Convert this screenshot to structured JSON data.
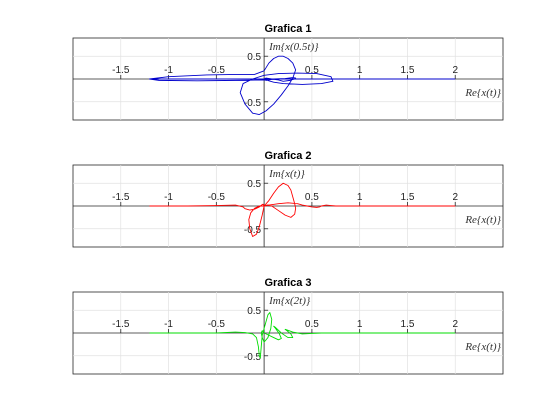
{
  "chart_data": [
    {
      "type": "line",
      "title": "Grafica 1",
      "xlabel": "Re{x(t)}",
      "ylabel": "Im{x(0.5t)}",
      "xlim": [
        -2.0,
        2.5
      ],
      "ylim": [
        -0.9,
        0.9
      ],
      "grid": true,
      "x_ticks": [
        -1.5,
        -1,
        -0.5,
        0.5,
        1,
        1.5,
        2
      ],
      "x_tick_labels": [
        "-1.5",
        "-1",
        "-0.5",
        "0.5",
        "1",
        "1.5",
        "2"
      ],
      "y_ticks": [
        0.5,
        -0.5
      ],
      "y_tick_labels": [
        "0.5",
        "-0.5"
      ],
      "series": [
        {
          "color": "#0000cc",
          "x": [
            -1.2,
            -1.0,
            -0.6,
            -0.3,
            -0.1,
            0.0,
            0.05,
            0.1,
            0.15,
            0.2,
            0.25,
            0.3,
            0.33,
            0.3,
            0.25,
            0.18,
            0.1,
            0.02,
            -0.05,
            -0.12,
            -0.2,
            -0.25,
            -0.22,
            -0.12,
            0.0,
            0.15,
            0.35,
            0.55,
            0.7,
            0.72,
            0.6,
            0.4,
            0.2,
            0.1,
            0.05,
            0.02,
            0.0,
            0.02,
            0.08,
            0.15,
            0.2,
            0.27,
            0.32,
            0.33,
            0.3,
            0.22,
            0.1,
            0.05,
            0.03,
            0.0,
            -0.3,
            -0.7,
            -1.1,
            -1.2,
            -0.9,
            -0.5,
            0.0,
            0.5,
            1.0,
            1.5,
            2.0
          ],
          "y": [
            0.0,
            0.05,
            0.09,
            0.1,
            0.1,
            0.18,
            0.35,
            0.45,
            0.5,
            0.5,
            0.45,
            0.35,
            0.2,
            0.02,
            -0.15,
            -0.35,
            -0.55,
            -0.7,
            -0.78,
            -0.75,
            -0.55,
            -0.3,
            -0.1,
            0.0,
            0.08,
            0.12,
            0.13,
            0.12,
            0.05,
            -0.05,
            -0.1,
            -0.12,
            -0.1,
            -0.07,
            -0.04,
            -0.01,
            0.0,
            0.02,
            0.0,
            -0.02,
            -0.05,
            -0.03,
            0.0,
            0.02,
            0.03,
            0.01,
            0.0,
            -0.02,
            -0.03,
            -0.02,
            -0.03,
            -0.04,
            -0.03,
            0.0,
            0.0,
            0.0,
            0.0,
            0.0,
            0.0,
            0.0,
            0.0
          ]
        }
      ]
    },
    {
      "type": "line",
      "title": "Grafica 2",
      "xlabel": "Re{x(t)}",
      "ylabel": "Im{x(t)}",
      "xlim": [
        -2.0,
        2.5
      ],
      "ylim": [
        -0.9,
        0.9
      ],
      "grid": true,
      "x_ticks": [
        -1.5,
        -1,
        -0.5,
        0.5,
        1,
        1.5,
        2
      ],
      "x_tick_labels": [
        "-1.5",
        "-1",
        "-0.5",
        "0.5",
        "1",
        "1.5",
        "2"
      ],
      "y_ticks": [
        0.5,
        -0.5
      ],
      "y_tick_labels": [
        "0.5",
        "-0.5"
      ],
      "series": [
        {
          "color": "#ff0000",
          "x": [
            -1.2,
            -0.8,
            -0.5,
            -0.3,
            -0.22,
            -0.2,
            -0.15,
            -0.1,
            -0.05,
            -0.02,
            -0.01,
            0.0,
            0.05,
            0.1,
            0.15,
            0.2,
            0.25,
            0.28,
            0.3,
            0.32,
            0.33,
            0.32,
            0.28,
            0.22,
            0.15,
            0.08,
            0.03,
            0.0,
            -0.02,
            -0.05,
            -0.08,
            -0.12,
            -0.15,
            -0.16,
            -0.14,
            -0.1,
            -0.05,
            0.0,
            0.05,
            0.15,
            0.25,
            0.35,
            0.4,
            0.45,
            0.5,
            0.55,
            0.58,
            0.6,
            0.65,
            0.7,
            0.75,
            0.8,
            0.9,
            1.1,
            1.3,
            1.5,
            1.7,
            1.9,
            2.0
          ],
          "y": [
            0.0,
            0.0,
            0.01,
            0.02,
            -0.02,
            -0.06,
            -0.09,
            -0.07,
            -0.02,
            0.03,
            0.04,
            0.0,
            0.12,
            0.28,
            0.42,
            0.5,
            0.45,
            0.35,
            0.2,
            0.05,
            -0.05,
            -0.18,
            -0.25,
            -0.2,
            -0.1,
            0.0,
            0.02,
            0.0,
            -0.2,
            -0.45,
            -0.62,
            -0.67,
            -0.5,
            -0.3,
            -0.15,
            -0.05,
            0.0,
            0.0,
            0.02,
            0.05,
            0.07,
            0.05,
            0.02,
            0.0,
            -0.02,
            -0.03,
            -0.02,
            0.0,
            0.02,
            0.01,
            0.0,
            0.0,
            0.0,
            0.0,
            0.0,
            0.0,
            0.0,
            0.0,
            0.0
          ]
        }
      ]
    },
    {
      "type": "line",
      "title": "Grafica 3",
      "xlabel": "Re{x(t)}",
      "ylabel": "Im{x(2t)}",
      "xlim": [
        -2.0,
        2.5
      ],
      "ylim": [
        -0.9,
        0.9
      ],
      "grid": true,
      "x_ticks": [
        -1.5,
        -1,
        -0.5,
        0.5,
        1,
        1.5,
        2
      ],
      "x_tick_labels": [
        "-1.5",
        "-1",
        "-0.5",
        "0.5",
        "1",
        "1.5",
        "2"
      ],
      "y_ticks": [
        0.5,
        -0.5
      ],
      "y_tick_labels": [
        "0.5",
        "-0.5"
      ],
      "series": [
        {
          "color": "#00dd00",
          "x": [
            -1.2,
            -0.8,
            -0.5,
            -0.3,
            -0.2,
            -0.12,
            -0.08,
            -0.06,
            -0.05,
            -0.04,
            -0.03,
            -0.02,
            0.0,
            0.02,
            0.04,
            0.06,
            0.08,
            0.07,
            0.04,
            0.0,
            -0.02,
            -0.03,
            -0.02,
            0.0,
            0.05,
            0.1,
            0.15,
            0.18,
            0.16,
            0.12,
            0.1,
            0.12,
            0.18,
            0.25,
            0.3,
            0.28,
            0.24,
            0.22,
            0.25,
            0.3,
            0.35,
            0.4,
            0.5,
            0.6,
            0.8,
            1.0,
            1.3,
            1.6,
            2.0
          ],
          "y": [
            0.0,
            0.0,
            0.0,
            0.02,
            0.01,
            -0.02,
            -0.1,
            -0.3,
            -0.5,
            -0.55,
            -0.3,
            -0.05,
            0.1,
            0.25,
            0.4,
            0.45,
            0.3,
            0.1,
            -0.1,
            -0.2,
            -0.1,
            0.0,
            0.05,
            0.0,
            -0.05,
            -0.1,
            -0.15,
            -0.12,
            -0.02,
            0.1,
            0.15,
            0.12,
            0.0,
            -0.1,
            -0.1,
            -0.02,
            0.05,
            0.08,
            0.06,
            0.02,
            0.0,
            -0.02,
            -0.01,
            0.0,
            0.0,
            0.0,
            0.0,
            0.0,
            0.0
          ]
        }
      ]
    }
  ]
}
